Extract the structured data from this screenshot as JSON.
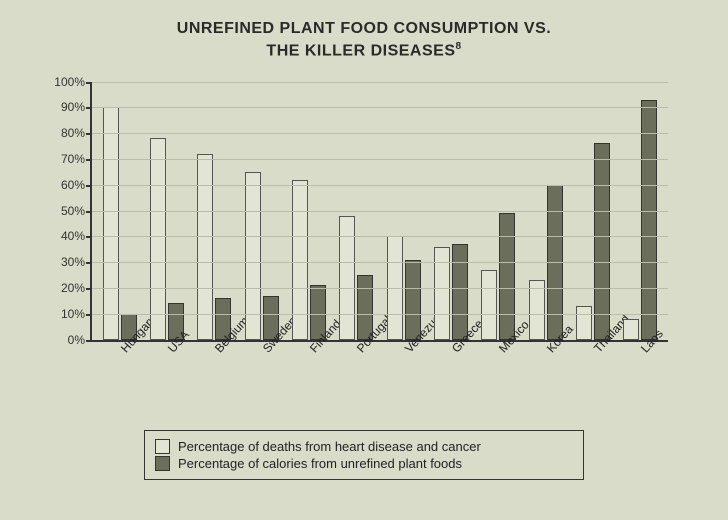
{
  "title_line1": "UNREFINED PLANT FOOD CONSUMPTION VS.",
  "title_line2": "THE KILLER DISEASES",
  "title_footnote": "8",
  "chart": {
    "type": "bar",
    "ylim": [
      0,
      100
    ],
    "ytick_step": 10,
    "ytick_suffix": "%",
    "background_color": "#d8dcc8",
    "grid_color": "#b8bca8",
    "axis_color": "#333333",
    "bar_light_fill": "#e2e4d4",
    "bar_light_border": "#555555",
    "bar_dark_fill": "#6a6e5a",
    "bar_dark_border": "#333333",
    "label_fontsize": 12,
    "categories": [
      "Hungary",
      "USA",
      "Belgium",
      "Sweden",
      "Finland",
      "Portugal",
      "Venezuela",
      "Greece",
      "Mexico",
      "Korea",
      "Thailand",
      "Laos"
    ],
    "series": [
      {
        "key": "deaths",
        "legend": "Percentage of deaths from heart disease and cancer",
        "color": "#e2e4d4",
        "values": [
          90,
          78,
          72,
          65,
          62,
          48,
          40,
          36,
          27,
          23,
          13,
          8
        ]
      },
      {
        "key": "calories",
        "legend": "Percentage of calories from unrefined plant foods",
        "color": "#6a6e5a",
        "values": [
          10,
          14,
          16,
          17,
          21,
          25,
          31,
          37,
          49,
          60,
          76,
          93
        ]
      }
    ]
  },
  "legend": {
    "row1": "Percentage of deaths from heart disease and cancer",
    "row2": "Percentage of calories from unrefined plant foods"
  }
}
